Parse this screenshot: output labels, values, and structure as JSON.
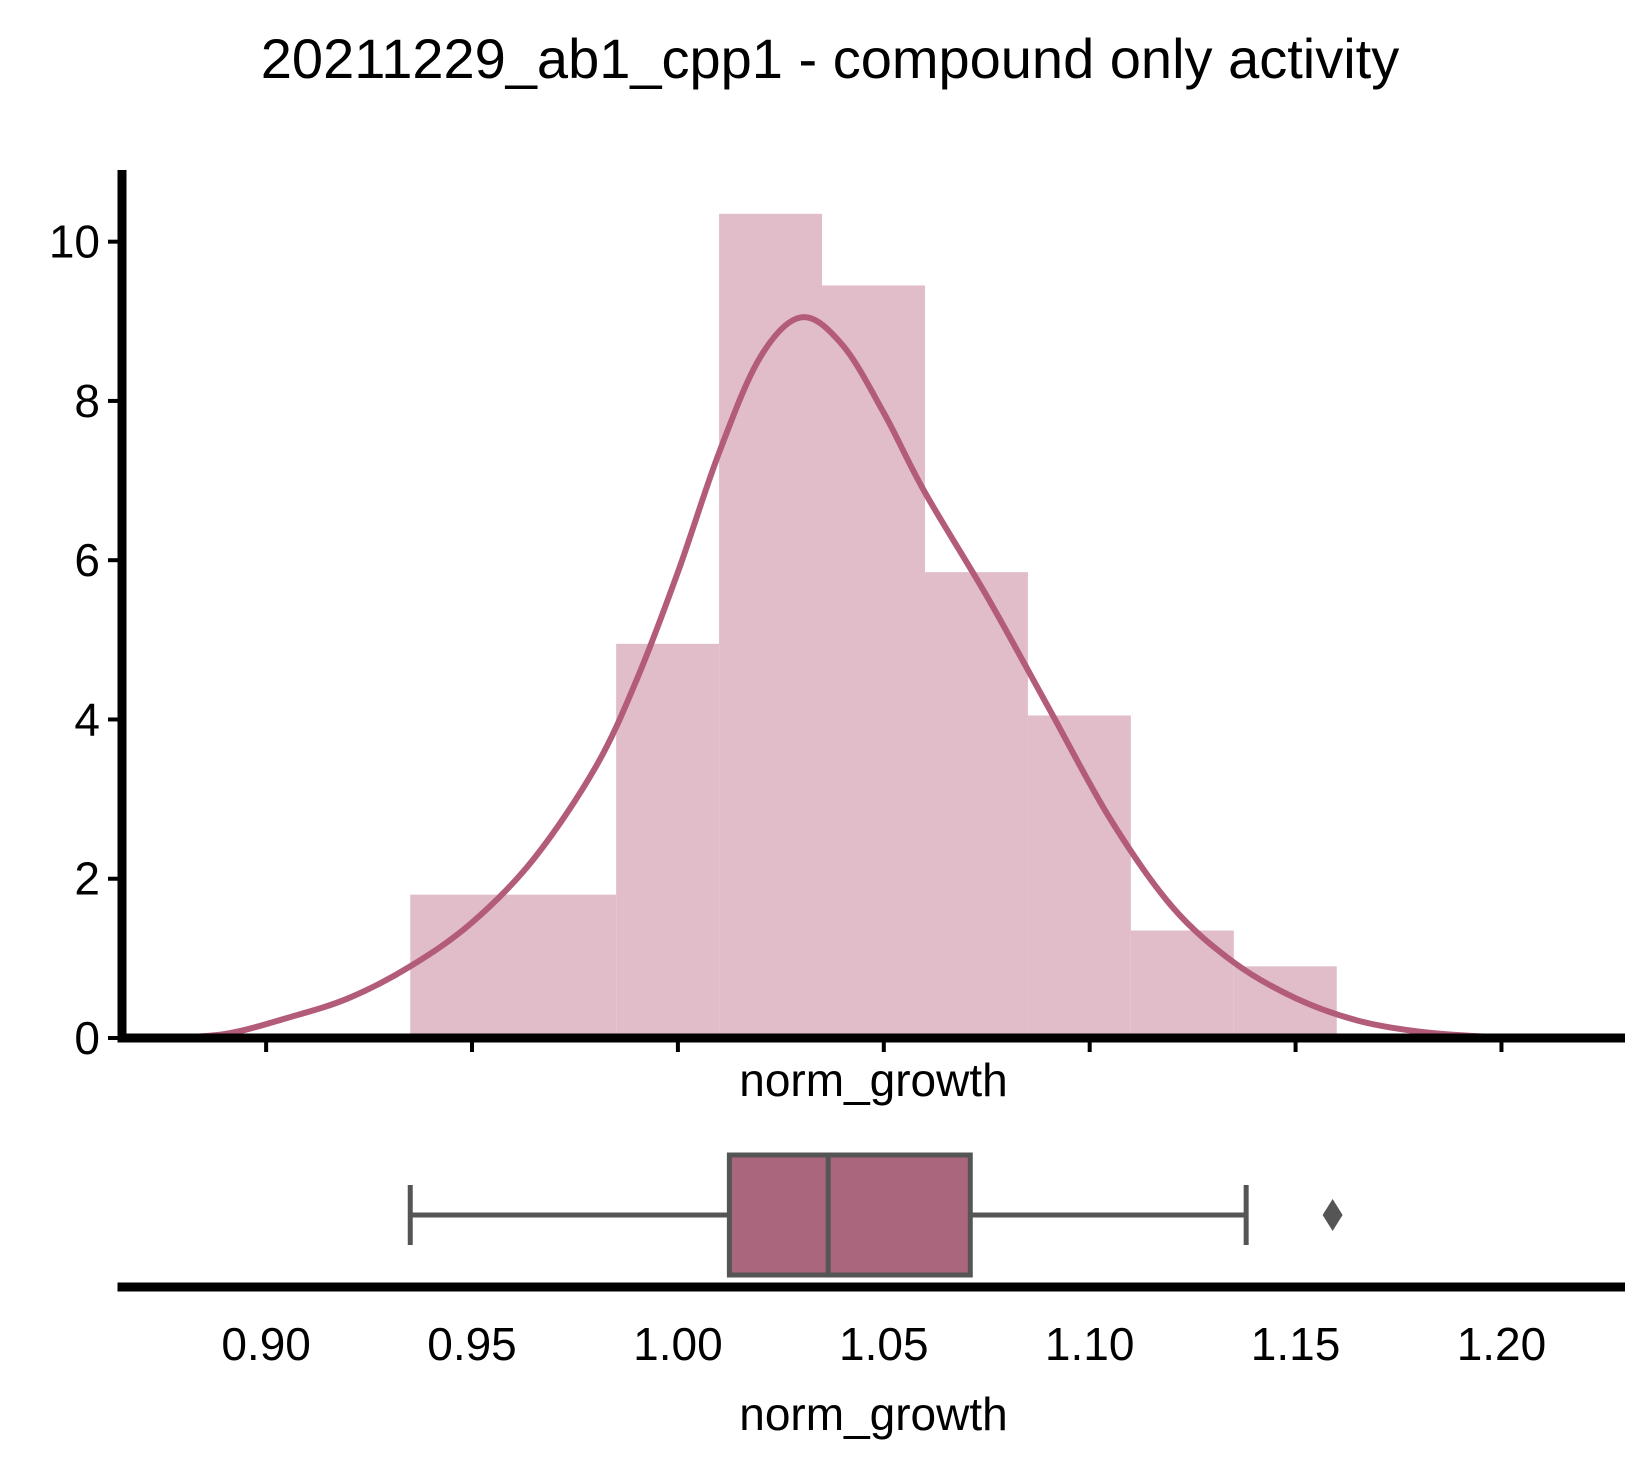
{
  "chart_data": [
    {
      "type": "histogram",
      "title": "20211229_ab1_cpp1 - compound only activity",
      "xlabel": "norm_growth",
      "ylabel": "",
      "xlim": [
        0.865,
        1.23
      ],
      "ylim": [
        0,
        10.9
      ],
      "yticks": [
        0,
        2,
        4,
        6,
        8,
        10
      ],
      "xticks": [
        0.9,
        0.95,
        1.0,
        1.05,
        1.1,
        1.15,
        1.2
      ],
      "bins": [
        {
          "x0": 0.935,
          "x1": 0.985,
          "density": 1.8
        },
        {
          "x0": 0.985,
          "x1": 1.01,
          "density": 4.95
        },
        {
          "x0": 1.01,
          "x1": 1.035,
          "density": 10.35
        },
        {
          "x0": 1.035,
          "x1": 1.06,
          "density": 9.45
        },
        {
          "x0": 1.06,
          "x1": 1.085,
          "density": 5.85
        },
        {
          "x0": 1.085,
          "x1": 1.11,
          "density": 4.05
        },
        {
          "x0": 1.11,
          "x1": 1.135,
          "density": 1.35
        },
        {
          "x0": 1.135,
          "x1": 1.16,
          "density": 0.9
        }
      ],
      "kde": {
        "x": [
          0.875,
          0.89,
          0.905,
          0.92,
          0.935,
          0.95,
          0.965,
          0.98,
          0.99,
          1.0,
          1.01,
          1.02,
          1.03,
          1.04,
          1.05,
          1.06,
          1.075,
          1.09,
          1.105,
          1.12,
          1.135,
          1.15,
          1.165,
          1.18,
          1.195,
          1.21
        ],
        "y": [
          0.0,
          0.05,
          0.25,
          0.5,
          0.9,
          1.45,
          2.25,
          3.4,
          4.5,
          5.85,
          7.35,
          8.55,
          9.05,
          8.7,
          7.85,
          6.85,
          5.55,
          4.15,
          2.75,
          1.65,
          0.95,
          0.5,
          0.22,
          0.08,
          0.02,
          0.0
        ]
      },
      "colors": {
        "bar": "#e1bdc9",
        "kde": "#b35c7a"
      }
    },
    {
      "type": "boxplot",
      "xlabel": "norm_growth",
      "xticklabels": [
        "0.90",
        "0.95",
        "1.00",
        "1.05",
        "1.10",
        "1.15",
        "1.20"
      ],
      "whisker_low": 0.935,
      "q1": 1.0125,
      "median": 1.0365,
      "q3": 1.071,
      "whisker_high": 1.138,
      "outliers": [
        1.159
      ],
      "colors": {
        "box": "#aa667d",
        "line": "#555555"
      }
    }
  ]
}
